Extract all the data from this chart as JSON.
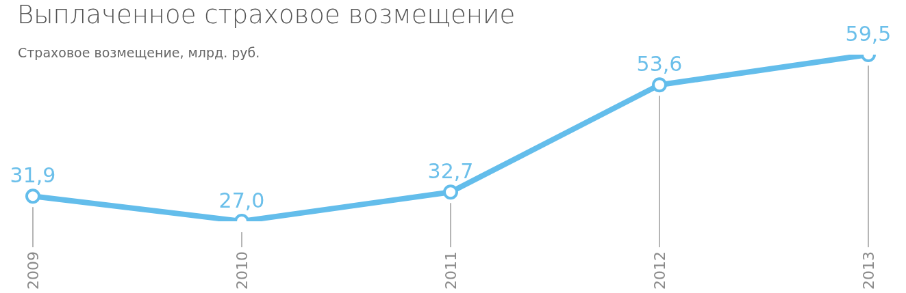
{
  "chart_data": {
    "type": "line",
    "title": "Выплаченное страховое возмещение",
    "subtitle": "Страховое возмещение, млрд. руб.",
    "categories": [
      "2009",
      "2010",
      "2011",
      "2012",
      "2013"
    ],
    "series": [
      {
        "color": "#63bdeb",
        "values": [
          31.9,
          27.0,
          32.7,
          53.6,
          59.5
        ],
        "value_labels": [
          "31,9",
          "27,0",
          "32,7",
          "53,6",
          "59,5"
        ]
      }
    ],
    "marker": "circle",
    "line_style": "solid",
    "grid": "x",
    "legend": false
  }
}
